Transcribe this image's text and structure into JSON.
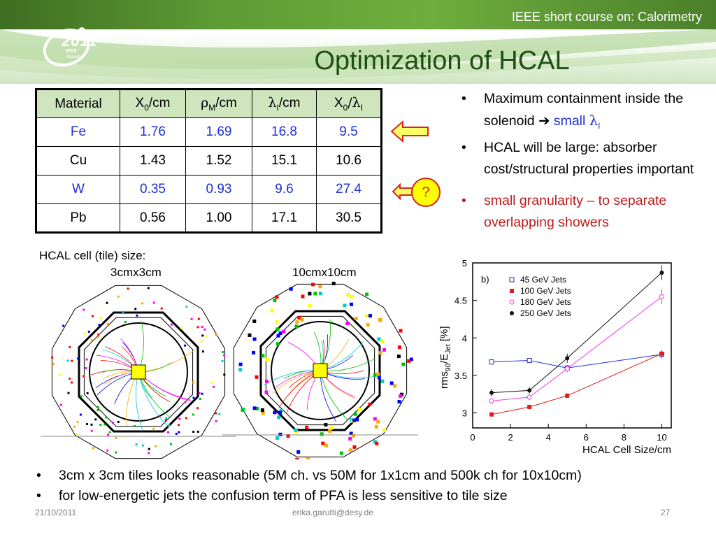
{
  "header": {
    "course_title": "IEEE short course on: Calorimetry",
    "slide_title": "Optimization of HCAL",
    "logo": {
      "year": "2011",
      "org": "IEEE",
      "city": "Valencia"
    }
  },
  "table": {
    "headers": [
      {
        "main": "Material",
        "sub": "",
        "tail": ""
      },
      {
        "main": "X",
        "sub": "0",
        "tail": "/cm"
      },
      {
        "main": "ρ",
        "sub": "M",
        "tail": "/cm"
      },
      {
        "main": "λ",
        "sub": "I",
        "tail": "/cm"
      },
      {
        "main": "X",
        "sub": "0",
        "tail": "/λ"
      }
    ],
    "header_last_sub": "I",
    "rows": [
      {
        "cells": [
          "Fe",
          "1.76",
          "1.69",
          "16.8",
          "9.5"
        ],
        "highlight": true
      },
      {
        "cells": [
          "Cu",
          "1.43",
          "1.52",
          "15.1",
          "10.6"
        ],
        "highlight": false
      },
      {
        "cells": [
          "W",
          "0.35",
          "0.93",
          "9.6",
          "27.4"
        ],
        "highlight": true
      },
      {
        "cells": [
          "Pb",
          "0.56",
          "1.00",
          "17.1",
          "30.5"
        ],
        "highlight": false
      }
    ],
    "question_mark": "?"
  },
  "right_bullets": {
    "b1_text": "Maximum containment  inside the solenoid ",
    "b1_arrow": "➔",
    "b1_small": " small ",
    "b1_lambda": "λ",
    "b1_sub": "I",
    "b2_text": "HCAL will be large: absorber cost/structural properties important",
    "b3_text": "small granularity  –  to separate overlapping showers"
  },
  "cell_figure": {
    "title": "HCAL cell (tile) size:",
    "label_left": "3cmx3cm",
    "label_right": "10cmx10cm"
  },
  "chart_data": {
    "type": "line",
    "panel_label": "b)",
    "xlabel": "HCAL Cell Size/cm",
    "ylabel_main": "rms",
    "ylabel_sub1": "90",
    "ylabel_mid": "/E",
    "ylabel_sub2": "Jet",
    "ylabel_tail": " [%]",
    "xlim": [
      0,
      10.5
    ],
    "ylim": [
      2.8,
      5
    ],
    "x_ticks": [
      0,
      2,
      4,
      6,
      8,
      10
    ],
    "y_ticks": [
      3,
      3.5,
      4,
      4.5,
      5
    ],
    "y_tick_labels": [
      "3",
      "3.5",
      "4",
      "4.5",
      "5"
    ],
    "legend_position": "top-left",
    "series": [
      {
        "name": "45 GeV Jets",
        "color": "#1d2fd8",
        "marker": "open-square",
        "x": [
          1,
          3,
          5,
          10
        ],
        "y": [
          3.68,
          3.7,
          3.6,
          3.78
        ],
        "err": [
          0.04,
          0.03,
          0.04,
          0.05
        ]
      },
      {
        "name": "100 GeV Jets",
        "color": "#e11d1d",
        "marker": "filled-square",
        "x": [
          1,
          3,
          5,
          10
        ],
        "y": [
          2.98,
          3.08,
          3.23,
          3.79
        ],
        "err": [
          0.03,
          0.03,
          0.03,
          0.05
        ]
      },
      {
        "name": "180 GeV Jets",
        "color": "#ee3ee0",
        "marker": "open-circle",
        "x": [
          1,
          3,
          5,
          10
        ],
        "y": [
          3.16,
          3.21,
          3.59,
          4.55
        ],
        "err": [
          0.04,
          0.04,
          0.05,
          0.1
        ]
      },
      {
        "name": "250 GeV Jets",
        "color": "#111111",
        "marker": "filled-circle",
        "x": [
          1,
          3,
          5,
          10
        ],
        "y": [
          3.27,
          3.3,
          3.73,
          4.87
        ],
        "err": [
          0.05,
          0.04,
          0.06,
          0.1
        ]
      }
    ]
  },
  "bottom_bullets": [
    "3cm x 3cm tiles looks reasonable (5M ch. vs 50M for 1x1cm and 500k ch for 10x10cm)",
    "for low-energetic jets the confusion term of PFA is less sensitive to tile size"
  ],
  "footer": {
    "date": "21/10/2011",
    "email": "erika.garutti@desy.de",
    "page": "27"
  }
}
